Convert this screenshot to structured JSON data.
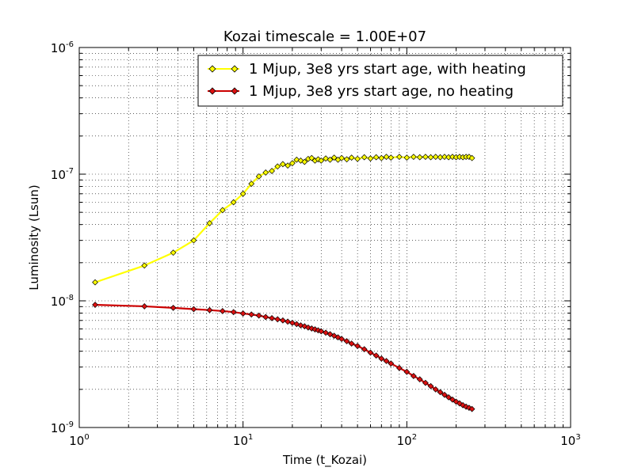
{
  "chart_data": {
    "type": "line",
    "title": "Kozai timescale = 1.00E+07",
    "xlabel": "Time (t_Kozai)",
    "ylabel": "Luminosity (Lsun)",
    "xscale": "log",
    "yscale": "log",
    "xlim": [
      1,
      1000
    ],
    "ylim": [
      1e-09,
      1e-06
    ],
    "xticks": [
      {
        "value": 1,
        "base": "10",
        "exp": "0"
      },
      {
        "value": 10,
        "base": "10",
        "exp": "1"
      },
      {
        "value": 100,
        "base": "10",
        "exp": "2"
      },
      {
        "value": 1000,
        "base": "10",
        "exp": "3"
      }
    ],
    "yticks": [
      {
        "value": 1e-09,
        "base": "10",
        "exp": "-9"
      },
      {
        "value": 1e-08,
        "base": "10",
        "exp": "-8"
      },
      {
        "value": 1e-07,
        "base": "10",
        "exp": "-7"
      },
      {
        "value": 1e-06,
        "base": "10",
        "exp": "-6"
      }
    ],
    "grid": "dotted, major and minor",
    "legend_position": "top-right",
    "series": [
      {
        "name": "1 Mjup, 3e8 yrs start age, with heating",
        "color": "#ffff00",
        "marker_fill": "#ffff00",
        "marker": "diamond",
        "x": [
          1.25,
          2.5,
          3.75,
          5,
          6.25,
          7.5,
          8.75,
          10,
          11.25,
          12.5,
          13.75,
          15,
          16.25,
          17.5,
          18.75,
          20,
          21.25,
          22.5,
          23.75,
          25,
          26.25,
          27.5,
          28.75,
          30,
          32,
          34,
          36,
          38,
          40,
          43,
          46,
          50,
          55,
          60,
          65,
          70,
          75,
          80,
          90,
          100,
          110,
          120,
          130,
          140,
          150,
          160,
          170,
          180,
          190,
          200,
          210,
          220,
          230,
          240,
          250
        ],
        "y": [
          1.4e-08,
          1.9e-08,
          2.4e-08,
          3e-08,
          4.1e-08,
          5.2e-08,
          6e-08,
          7e-08,
          8.4e-08,
          9.6e-08,
          1.03e-07,
          1.06e-07,
          1.15e-07,
          1.2e-07,
          1.17e-07,
          1.22e-07,
          1.3e-07,
          1.28e-07,
          1.25e-07,
          1.32e-07,
          1.34e-07,
          1.28e-07,
          1.31e-07,
          1.28e-07,
          1.33e-07,
          1.3e-07,
          1.35e-07,
          1.3e-07,
          1.34e-07,
          1.31e-07,
          1.35e-07,
          1.32e-07,
          1.36e-07,
          1.33e-07,
          1.36e-07,
          1.34e-07,
          1.37e-07,
          1.35e-07,
          1.37e-07,
          1.35e-07,
          1.37e-07,
          1.36e-07,
          1.37e-07,
          1.36e-07,
          1.37e-07,
          1.36e-07,
          1.37e-07,
          1.36e-07,
          1.37e-07,
          1.36e-07,
          1.37e-07,
          1.36e-07,
          1.37e-07,
          1.37e-07,
          1.34e-07
        ]
      },
      {
        "name": "1 Mjup, 3e8 yrs start age, no heating",
        "color": "#cc0000",
        "marker_fill": "#dd1111",
        "marker": "diamond",
        "x": [
          1.25,
          2.5,
          3.75,
          5,
          6.25,
          7.5,
          8.75,
          10,
          11.25,
          12.5,
          13.75,
          15,
          16.25,
          17.5,
          18.75,
          20,
          21.25,
          22.5,
          23.75,
          25,
          26.25,
          27.5,
          28.75,
          30,
          32,
          34,
          36,
          38,
          40,
          43,
          46,
          50,
          55,
          60,
          65,
          70,
          75,
          80,
          90,
          100,
          110,
          120,
          130,
          140,
          150,
          160,
          170,
          180,
          190,
          200,
          210,
          220,
          230,
          240,
          250
        ],
        "y": [
          9.3e-09,
          9.05e-09,
          8.8e-09,
          8.6e-09,
          8.45e-09,
          8.3e-09,
          8.15e-09,
          7.95e-09,
          7.8e-09,
          7.65e-09,
          7.45e-09,
          7.3e-09,
          7.15e-09,
          7e-09,
          6.85e-09,
          6.7e-09,
          6.55e-09,
          6.4e-09,
          6.3e-09,
          6.15e-09,
          6.05e-09,
          5.95e-09,
          5.85e-09,
          5.75e-09,
          5.6e-09,
          5.45e-09,
          5.3e-09,
          5.15e-09,
          5e-09,
          4.8e-09,
          4.6e-09,
          4.4e-09,
          4.15e-09,
          3.9e-09,
          3.7e-09,
          3.5e-09,
          3.35e-09,
          3.2e-09,
          2.95e-09,
          2.75e-09,
          2.55e-09,
          2.4e-09,
          2.25e-09,
          2.12e-09,
          2e-09,
          1.9e-09,
          1.81e-09,
          1.73e-09,
          1.66e-09,
          1.6e-09,
          1.55e-09,
          1.5e-09,
          1.46e-09,
          1.43e-09,
          1.4e-09
        ]
      }
    ]
  }
}
